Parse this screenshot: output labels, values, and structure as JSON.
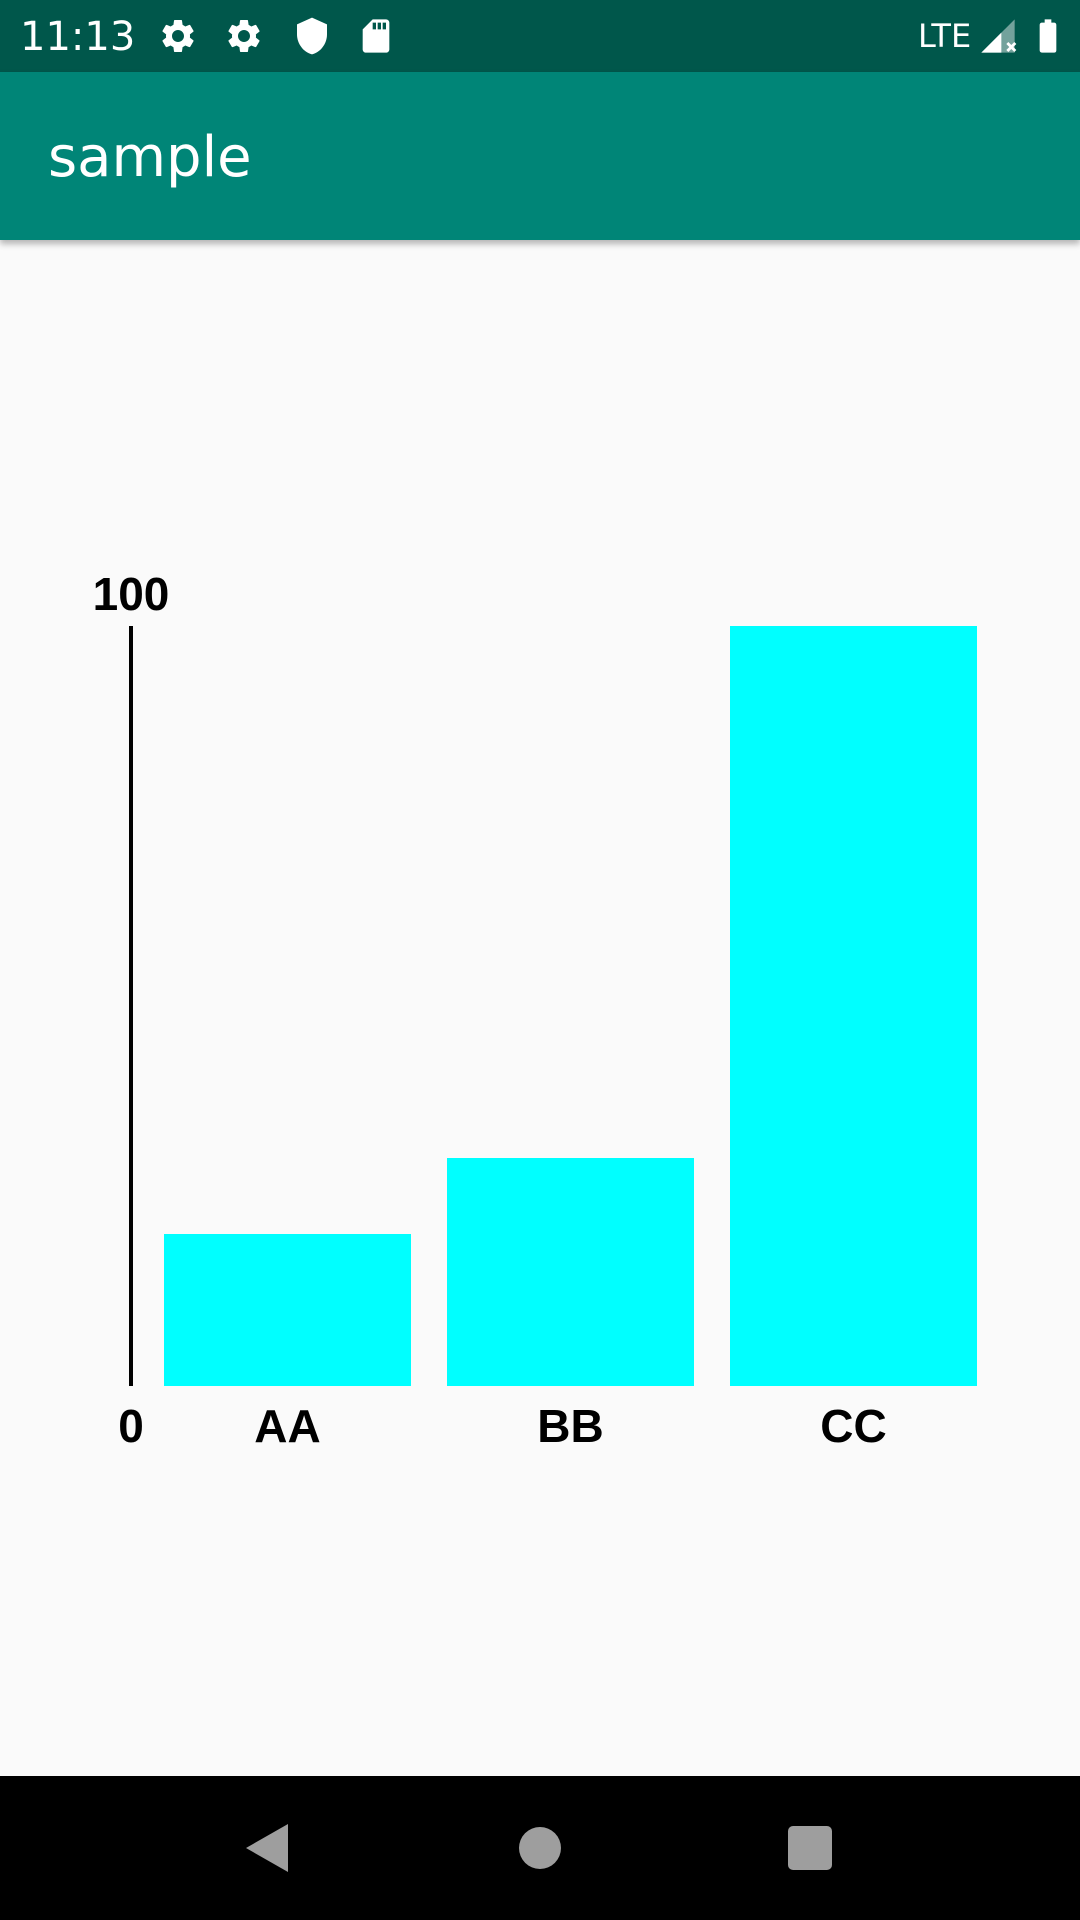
{
  "status_bar": {
    "time": "11:13",
    "network": "LTE",
    "icons": [
      "settings-icon",
      "settings-icon",
      "shield-icon",
      "sd-card-icon",
      "signal-icon",
      "battery-icon"
    ]
  },
  "app_bar": {
    "title": "sample"
  },
  "colors": {
    "status_bar": "#00574b",
    "app_bar": "#008577",
    "bar_fill": "#00ffff",
    "background": "#fafafa",
    "nav_bar": "#000000"
  },
  "chart_data": {
    "type": "bar",
    "categories": [
      "AA",
      "BB",
      "CC"
    ],
    "values": [
      20,
      30,
      100
    ],
    "ylim": [
      0,
      100
    ],
    "y_tick_labels": [
      "0",
      "100"
    ],
    "grid": false
  },
  "nav_bar": {
    "icons": [
      "back-icon",
      "home-icon",
      "recents-icon"
    ]
  }
}
